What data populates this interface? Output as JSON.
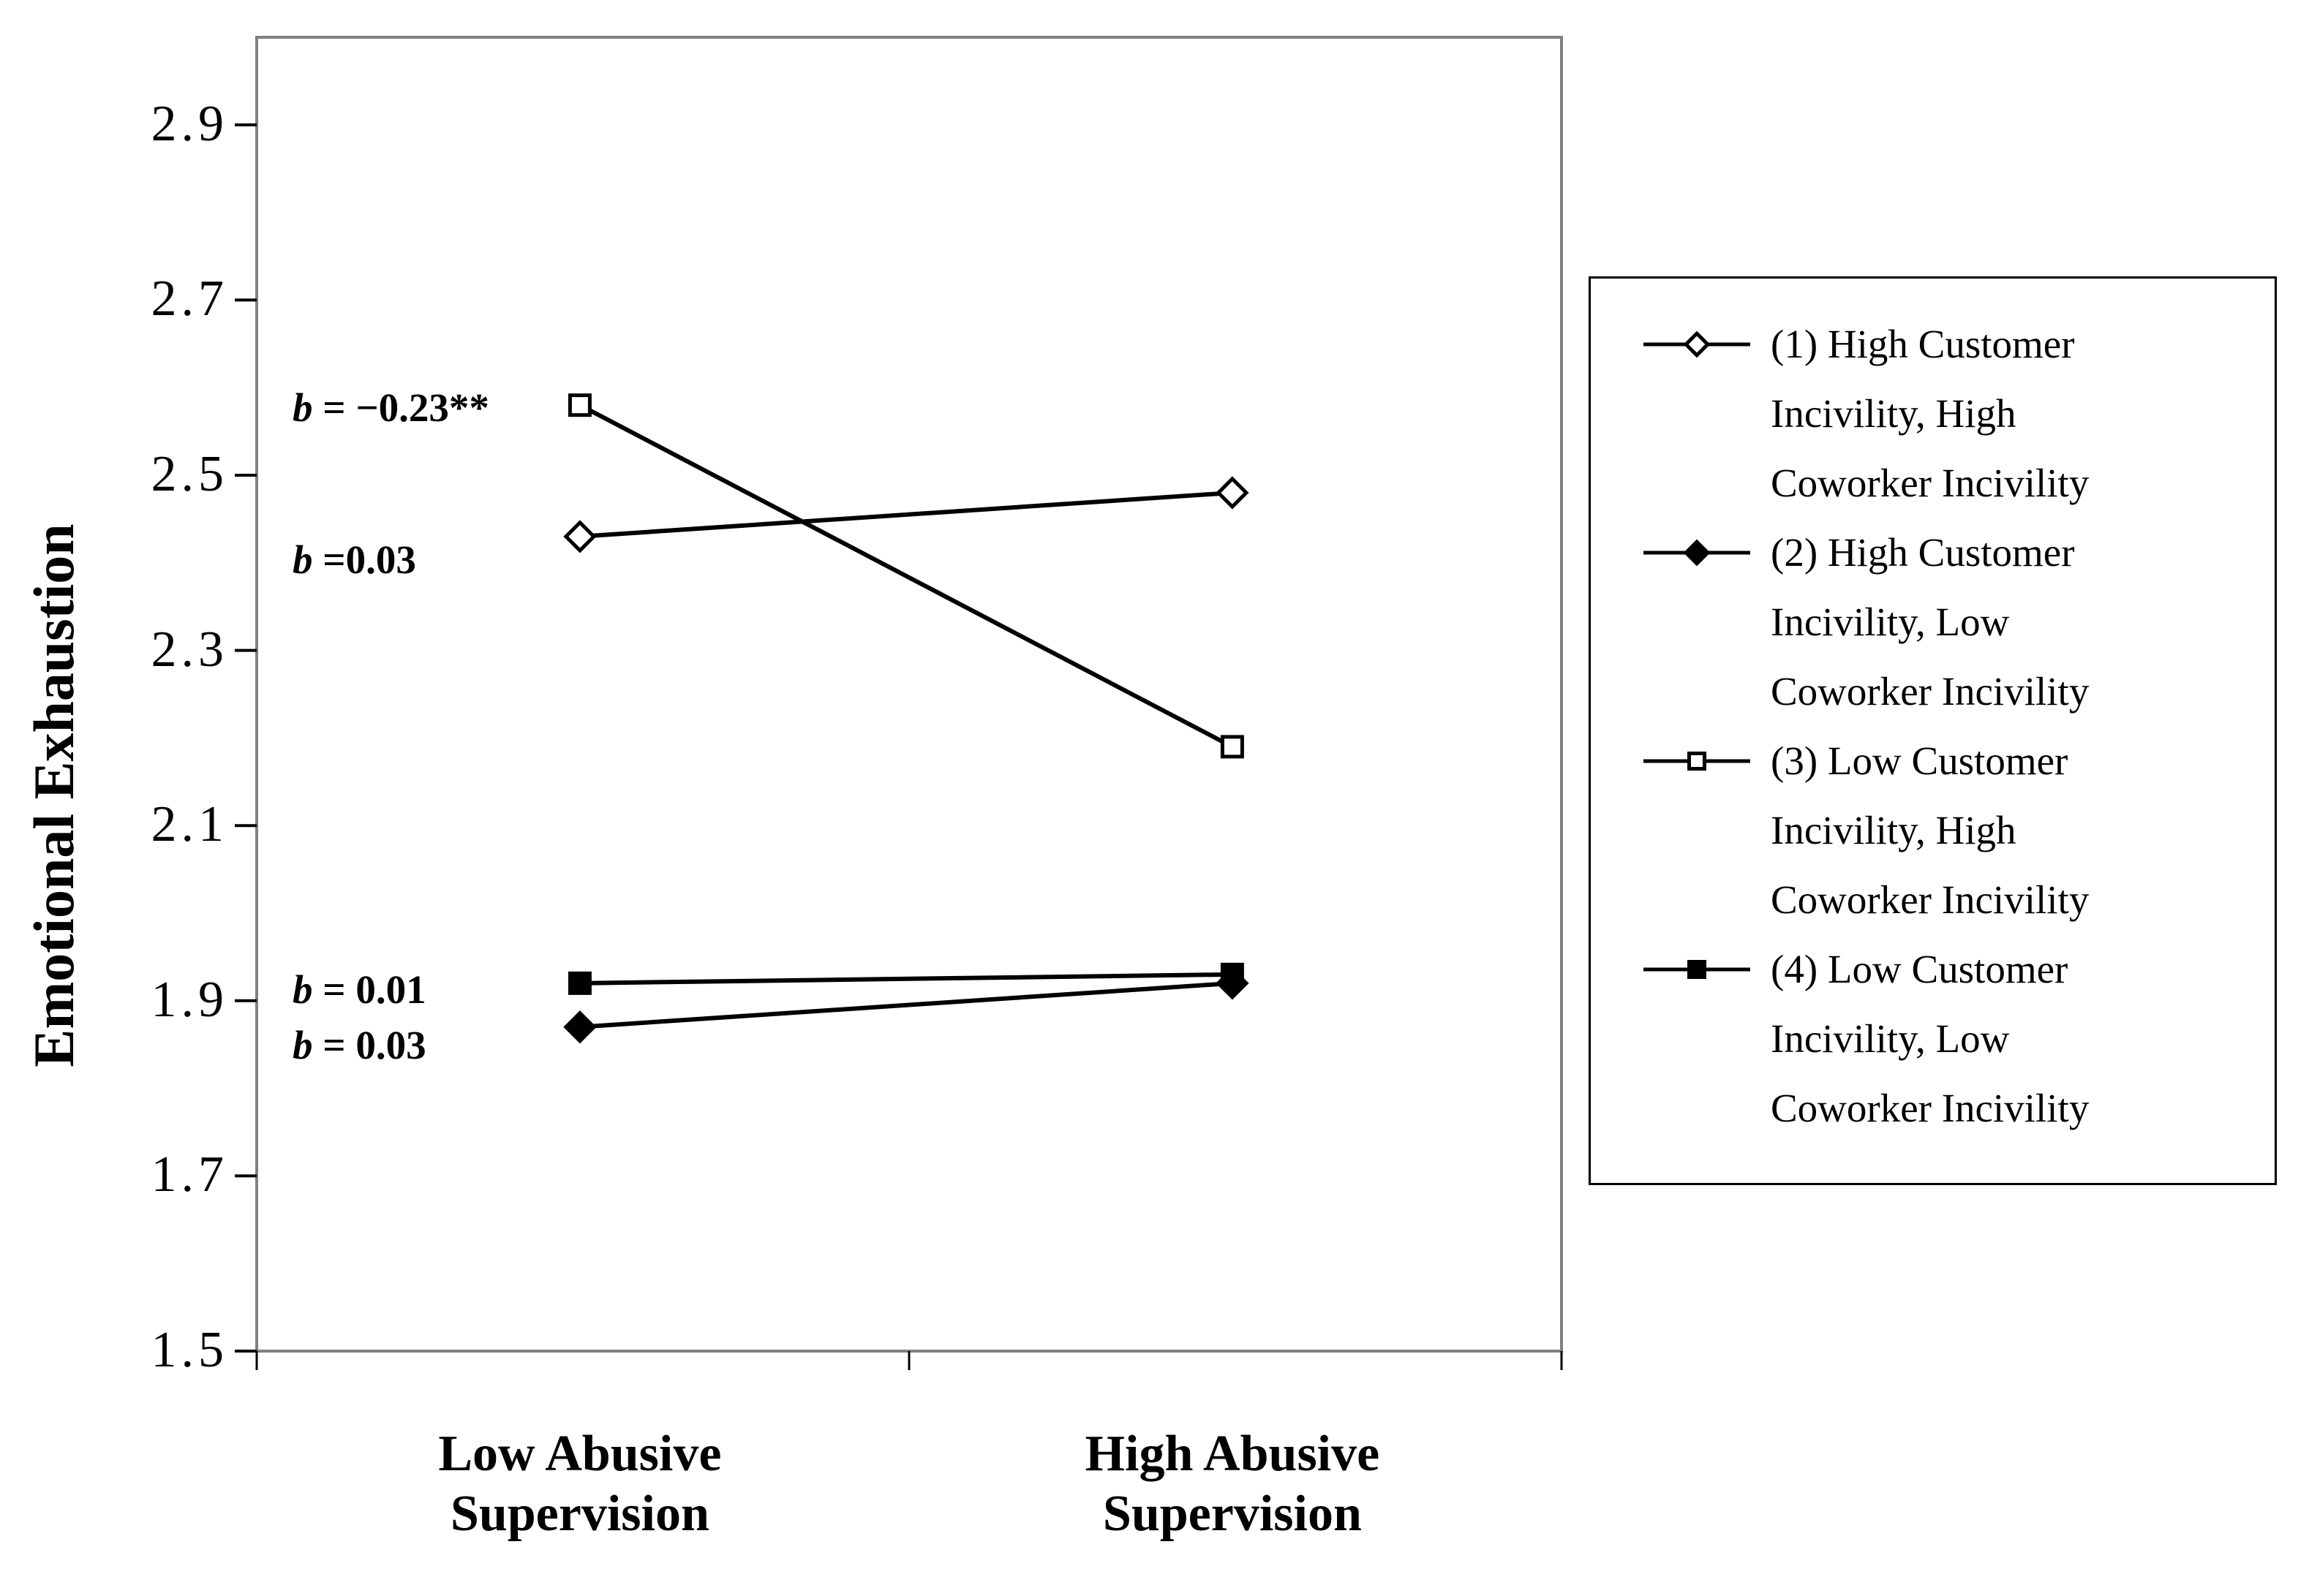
{
  "chart_data": {
    "type": "line",
    "title": "",
    "xlabel": "",
    "ylabel": "Emotional Exhaustion",
    "categories": [
      "Low Abusive Supervision",
      "High Abusive Supervision"
    ],
    "x_tick_lines": [
      [
        "Low Abusive",
        "Supervision"
      ],
      [
        "High Abusive",
        "Supervision"
      ]
    ],
    "ylim": [
      1.5,
      3.0
    ],
    "yticks": [
      2.9,
      2.7,
      2.5,
      2.3,
      2.1,
      1.9,
      1.7,
      1.5
    ],
    "grid": false,
    "legend_position": "right",
    "series": [
      {
        "name": "(1) High Customer Incivility, High Coworker Incivility",
        "legend_lines": [
          "(1) High Customer",
          "Incivility, High",
          "Coworker Incivility"
        ],
        "marker": "open-diamond",
        "values": [
          2.43,
          2.48
        ]
      },
      {
        "name": "(2) High Customer Incivility, Low Coworker Incivility",
        "legend_lines": [
          "(2) High Customer",
          "Incivility, Low",
          "Coworker Incivility"
        ],
        "marker": "filled-diamond",
        "values": [
          1.87,
          1.92
        ]
      },
      {
        "name": "(3) Low Customer Incivility, High Coworker Incivility",
        "legend_lines": [
          "(3) Low Customer",
          "Incivility, High",
          "Coworker Incivility"
        ],
        "marker": "open-square",
        "values": [
          2.58,
          2.19
        ]
      },
      {
        "name": "(4) Low Customer Incivility, Low Coworker Incivility",
        "legend_lines": [
          "(4) Low Customer",
          "Incivility, Low",
          "Coworker Incivility"
        ],
        "marker": "filled-square",
        "values": [
          1.92,
          1.93
        ]
      }
    ],
    "annotations": [
      {
        "prefix": "b",
        "text": " = −0.23**",
        "y": 2.577
      },
      {
        "prefix": "b",
        "text": " =0.03",
        "y": 2.403
      },
      {
        "prefix": "b",
        "text": " = 0.01",
        "y": 1.912
      },
      {
        "prefix": "b",
        "text": " = 0.03",
        "y": 1.849
      }
    ]
  },
  "colors": {
    "ink": "#000000",
    "frame": "#808080",
    "background": "#ffffff"
  }
}
